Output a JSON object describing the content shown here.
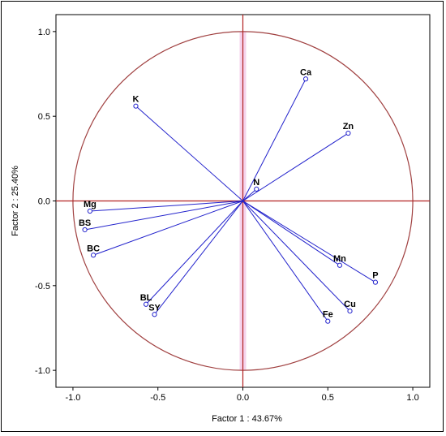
{
  "chart_data": {
    "type": "scatter",
    "xlabel": "Factor 1 : 43.67%",
    "ylabel": "Factor 2 : 25.40%",
    "xlim": [
      -1.1,
      1.1
    ],
    "ylim": [
      -1.1,
      1.1
    ],
    "xticks": [
      "-1.0",
      "-0.5",
      "0.0",
      "0.5",
      "1.0"
    ],
    "yticks": [
      "1.0",
      "0.5",
      "0.0",
      "-0.5",
      "-1.0"
    ],
    "xtick_values": [
      -1.0,
      -0.5,
      0.0,
      0.5,
      1.0
    ],
    "ytick_values": [
      1.0,
      0.5,
      0.0,
      -0.5,
      -1.0
    ],
    "unit_circle": true,
    "grid": false,
    "points": [
      {
        "label": "Ca",
        "x": 0.37,
        "y": 0.72
      },
      {
        "label": "Zn",
        "x": 0.62,
        "y": 0.4
      },
      {
        "label": "N",
        "x": 0.08,
        "y": 0.07
      },
      {
        "label": "K",
        "x": -0.63,
        "y": 0.56
      },
      {
        "label": "Mg",
        "x": -0.9,
        "y": -0.06
      },
      {
        "label": "BS",
        "x": -0.93,
        "y": -0.17
      },
      {
        "label": "BC",
        "x": -0.88,
        "y": -0.32
      },
      {
        "label": "BL",
        "x": -0.57,
        "y": -0.61
      },
      {
        "label": "SY",
        "x": -0.52,
        "y": -0.67
      },
      {
        "label": "Mn",
        "x": 0.57,
        "y": -0.38
      },
      {
        "label": "P",
        "x": 0.78,
        "y": -0.48
      },
      {
        "label": "Cu",
        "x": 0.63,
        "y": -0.65
      },
      {
        "label": "Fe",
        "x": 0.5,
        "y": -0.71
      }
    ],
    "colors": {
      "vectors": "#2222cc",
      "circle": "#a04040",
      "axes": "#b22222",
      "zero_band": "#f3c8e8"
    }
  }
}
